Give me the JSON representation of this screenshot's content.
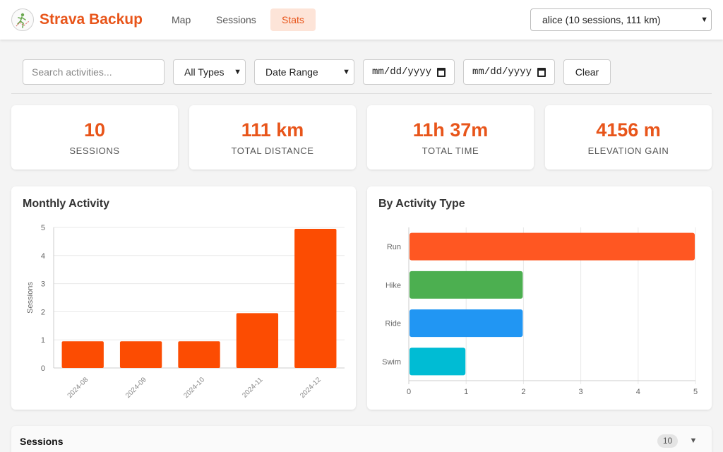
{
  "header": {
    "brand": "Strava Backup",
    "nav": [
      {
        "label": "Map",
        "active": false
      },
      {
        "label": "Sessions",
        "active": false
      },
      {
        "label": "Stats",
        "active": true
      }
    ],
    "user_select": "alice (10 sessions, 111 km)",
    "accent_color": "#e8551a"
  },
  "filters": {
    "search_placeholder": "Search activities...",
    "type_select": "All Types",
    "range_select": "Date Range",
    "date_from": "mm/dd/yyyy",
    "date_to": "mm/dd/yyyy",
    "clear_label": "Clear"
  },
  "stats": [
    {
      "value": "10",
      "label": "SESSIONS"
    },
    {
      "value": "111 km",
      "label": "TOTAL DISTANCE"
    },
    {
      "value": "11h 37m",
      "label": "TOTAL TIME"
    },
    {
      "value": "4156 m",
      "label": "ELEVATION GAIN"
    }
  ],
  "chart_data": [
    {
      "type": "bar",
      "title": "Monthly Activity",
      "categories": [
        "2024-08",
        "2024-09",
        "2024-10",
        "2024-11",
        "2024-12"
      ],
      "values": [
        1,
        1,
        1,
        2,
        5
      ],
      "ylabel": "Sessions",
      "xlabel": "",
      "ylim": [
        0,
        5
      ],
      "yticks": [
        "0",
        "1",
        "2",
        "3",
        "4",
        "5"
      ],
      "color": "#fc4c02",
      "grid": true
    },
    {
      "type": "bar",
      "orientation": "horizontal",
      "title": "By Activity Type",
      "categories": [
        "Run",
        "Hike",
        "Ride",
        "Swim"
      ],
      "values": [
        5,
        2,
        2,
        1
      ],
      "xlim": [
        0,
        5
      ],
      "xticks": [
        "0",
        "1",
        "2",
        "3",
        "4",
        "5"
      ],
      "colors": [
        "#ff5722",
        "#4caf50",
        "#2196f3",
        "#00bcd4"
      ],
      "grid": true
    }
  ],
  "sessions": {
    "title": "Sessions",
    "count": "10",
    "toggle_icon": "▼"
  }
}
